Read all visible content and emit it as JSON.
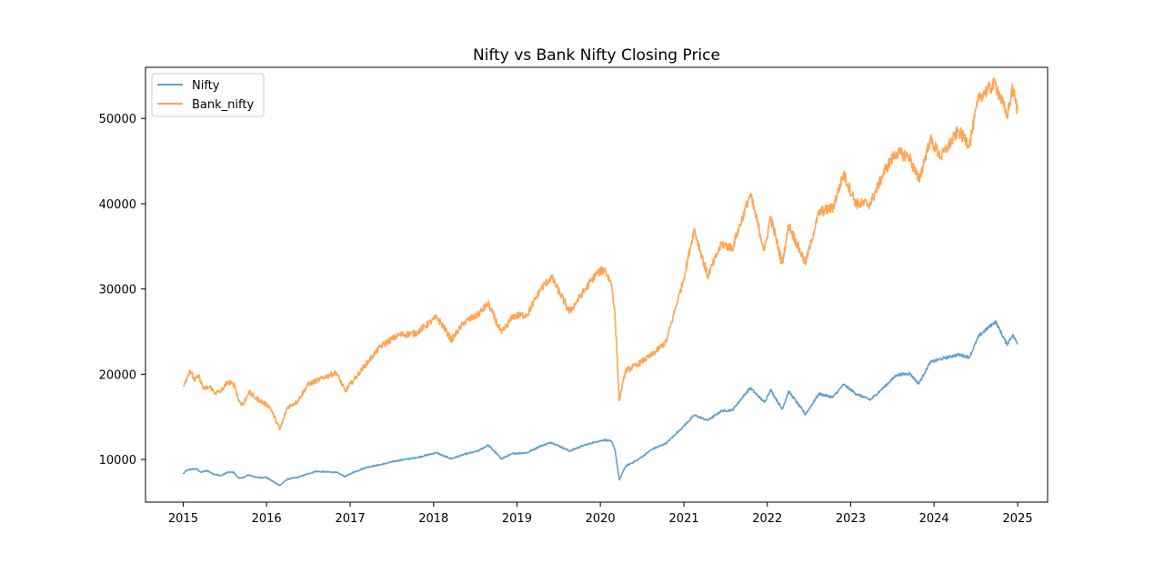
{
  "chart_data": {
    "type": "line",
    "title": "Nifty vs Bank Nifty Closing Price",
    "xlabel": "",
    "ylabel": "",
    "x_ticks": [
      "2015",
      "2016",
      "2017",
      "2018",
      "2019",
      "2020",
      "2021",
      "2022",
      "2023",
      "2024",
      "2025"
    ],
    "y_ticks": [
      "10000",
      "20000",
      "30000",
      "40000",
      "50000"
    ],
    "xlim": [
      "2014-07-20",
      "2025-05-12"
    ],
    "ylim": [
      5000,
      56000
    ],
    "grid": false,
    "legend_position": "top-left",
    "series": [
      {
        "name": "Nifty",
        "color": "#1f77b4",
        "points": [
          [
            "2015-01-01",
            8300
          ],
          [
            "2015-01-15",
            8700
          ],
          [
            "2015-02-01",
            8850
          ],
          [
            "2015-03-01",
            8900
          ],
          [
            "2015-03-20",
            8500
          ],
          [
            "2015-04-15",
            8700
          ],
          [
            "2015-05-15",
            8300
          ],
          [
            "2015-06-15",
            8100
          ],
          [
            "2015-07-15",
            8500
          ],
          [
            "2015-08-10",
            8500
          ],
          [
            "2015-08-28",
            7900
          ],
          [
            "2015-09-15",
            7800
          ],
          [
            "2015-10-15",
            8200
          ],
          [
            "2015-11-15",
            7900
          ],
          [
            "2015-12-31",
            7900
          ],
          [
            "2016-02-28",
            6950
          ],
          [
            "2016-04-01",
            7700
          ],
          [
            "2016-05-15",
            7900
          ],
          [
            "2016-08-01",
            8600
          ],
          [
            "2016-11-01",
            8500
          ],
          [
            "2016-12-10",
            8000
          ],
          [
            "2017-01-15",
            8500
          ],
          [
            "2017-03-15",
            9100
          ],
          [
            "2017-05-15",
            9400
          ],
          [
            "2017-08-01",
            9900
          ],
          [
            "2017-10-15",
            10200
          ],
          [
            "2018-01-15",
            10800
          ],
          [
            "2018-02-15",
            10400
          ],
          [
            "2018-03-20",
            10100
          ],
          [
            "2018-05-15",
            10600
          ],
          [
            "2018-07-15",
            11000
          ],
          [
            "2018-08-28",
            11700
          ],
          [
            "2018-10-25",
            10100
          ],
          [
            "2018-12-15",
            10700
          ],
          [
            "2019-02-15",
            10800
          ],
          [
            "2019-04-15",
            11600
          ],
          [
            "2019-06-01",
            12000
          ],
          [
            "2019-08-20",
            11000
          ],
          [
            "2019-10-15",
            11600
          ],
          [
            "2019-12-15",
            12100
          ],
          [
            "2020-01-20",
            12300
          ],
          [
            "2020-02-20",
            12100
          ],
          [
            "2020-03-05",
            11200
          ],
          [
            "2020-03-24",
            7600
          ],
          [
            "2020-04-20",
            9200
          ],
          [
            "2020-06-15",
            10000
          ],
          [
            "2020-08-15",
            11200
          ],
          [
            "2020-10-15",
            11900
          ],
          [
            "2020-12-31",
            13900
          ],
          [
            "2021-02-15",
            15200
          ],
          [
            "2021-04-15",
            14600
          ],
          [
            "2021-06-15",
            15700
          ],
          [
            "2021-08-01",
            15800
          ],
          [
            "2021-10-18",
            18400
          ],
          [
            "2021-12-20",
            16700
          ],
          [
            "2022-01-15",
            18200
          ],
          [
            "2022-03-07",
            15900
          ],
          [
            "2022-04-05",
            18000
          ],
          [
            "2022-06-17",
            15300
          ],
          [
            "2022-08-15",
            17700
          ],
          [
            "2022-10-15",
            17300
          ],
          [
            "2022-12-01",
            18800
          ],
          [
            "2023-01-25",
            17700
          ],
          [
            "2023-03-28",
            17000
          ],
          [
            "2023-06-01",
            18600
          ],
          [
            "2023-07-20",
            19900
          ],
          [
            "2023-09-15",
            20100
          ],
          [
            "2023-10-26",
            18900
          ],
          [
            "2023-12-15",
            21400
          ],
          [
            "2024-02-01",
            21800
          ],
          [
            "2024-04-15",
            22300
          ],
          [
            "2024-06-04",
            22000
          ],
          [
            "2024-07-15",
            24500
          ],
          [
            "2024-09-26",
            26200
          ],
          [
            "2024-11-15",
            23500
          ],
          [
            "2024-12-10",
            24600
          ],
          [
            "2024-12-31",
            23600
          ]
        ]
      },
      {
        "name": "Bank_nifty",
        "color": "#ff7f0e",
        "points": [
          [
            "2015-01-01",
            18700
          ],
          [
            "2015-01-20",
            19700
          ],
          [
            "2015-01-30",
            20500
          ],
          [
            "2015-02-20",
            19300
          ],
          [
            "2015-03-10",
            19800
          ],
          [
            "2015-03-31",
            18300
          ],
          [
            "2015-04-30",
            18500
          ],
          [
            "2015-05-20",
            17800
          ],
          [
            "2015-06-15",
            18000
          ],
          [
            "2015-07-15",
            19100
          ],
          [
            "2015-08-15",
            18700
          ],
          [
            "2015-09-01",
            16900
          ],
          [
            "2015-09-20",
            16400
          ],
          [
            "2015-10-15",
            17900
          ],
          [
            "2015-11-15",
            17200
          ],
          [
            "2016-01-15",
            16200
          ],
          [
            "2016-02-28",
            13500
          ],
          [
            "2016-04-01",
            16100
          ],
          [
            "2016-05-15",
            16800
          ],
          [
            "2016-07-01",
            18800
          ],
          [
            "2016-09-15",
            19700
          ],
          [
            "2016-11-01",
            20200
          ],
          [
            "2016-12-10",
            18000
          ],
          [
            "2017-01-15",
            19300
          ],
          [
            "2017-03-15",
            21300
          ],
          [
            "2017-05-15",
            23300
          ],
          [
            "2017-08-01",
            24600
          ],
          [
            "2017-10-15",
            24800
          ],
          [
            "2018-01-15",
            26700
          ],
          [
            "2018-02-15",
            25500
          ],
          [
            "2018-03-20",
            24000
          ],
          [
            "2018-05-15",
            26100
          ],
          [
            "2018-07-15",
            27000
          ],
          [
            "2018-08-28",
            28300
          ],
          [
            "2018-10-25",
            24800
          ],
          [
            "2018-12-15",
            26800
          ],
          [
            "2019-02-15",
            27000
          ],
          [
            "2019-04-15",
            30000
          ],
          [
            "2019-06-01",
            31400
          ],
          [
            "2019-08-20",
            27300
          ],
          [
            "2019-10-15",
            29500
          ],
          [
            "2019-12-15",
            31800
          ],
          [
            "2020-01-20",
            32300
          ],
          [
            "2020-02-20",
            30500
          ],
          [
            "2020-03-05",
            27000
          ],
          [
            "2020-03-24",
            16900
          ],
          [
            "2020-04-20",
            20400
          ],
          [
            "2020-06-15",
            21200
          ],
          [
            "2020-08-15",
            22300
          ],
          [
            "2020-10-15",
            23800
          ],
          [
            "2020-12-31",
            31200
          ],
          [
            "2021-02-15",
            37000
          ],
          [
            "2021-04-15",
            31500
          ],
          [
            "2021-06-15",
            35300
          ],
          [
            "2021-08-01",
            34800
          ],
          [
            "2021-10-18",
            41100
          ],
          [
            "2021-12-20",
            34500
          ],
          [
            "2022-01-15",
            38500
          ],
          [
            "2022-03-07",
            33000
          ],
          [
            "2022-04-05",
            37500
          ],
          [
            "2022-06-17",
            33000
          ],
          [
            "2022-08-15",
            39000
          ],
          [
            "2022-10-15",
            39500
          ],
          [
            "2022-12-01",
            43500
          ],
          [
            "2023-01-25",
            40000
          ],
          [
            "2023-03-28",
            40000
          ],
          [
            "2023-06-01",
            44000
          ],
          [
            "2023-07-20",
            46000
          ],
          [
            "2023-09-15",
            45500
          ],
          [
            "2023-10-26",
            42700
          ],
          [
            "2023-12-15",
            47500
          ],
          [
            "2024-02-01",
            45500
          ],
          [
            "2024-04-15",
            48500
          ],
          [
            "2024-06-04",
            47000
          ],
          [
            "2024-07-15",
            52500
          ],
          [
            "2024-09-26",
            54100
          ],
          [
            "2024-11-15",
            50300
          ],
          [
            "2024-12-10",
            53500
          ],
          [
            "2024-12-31",
            51000
          ]
        ]
      }
    ]
  }
}
